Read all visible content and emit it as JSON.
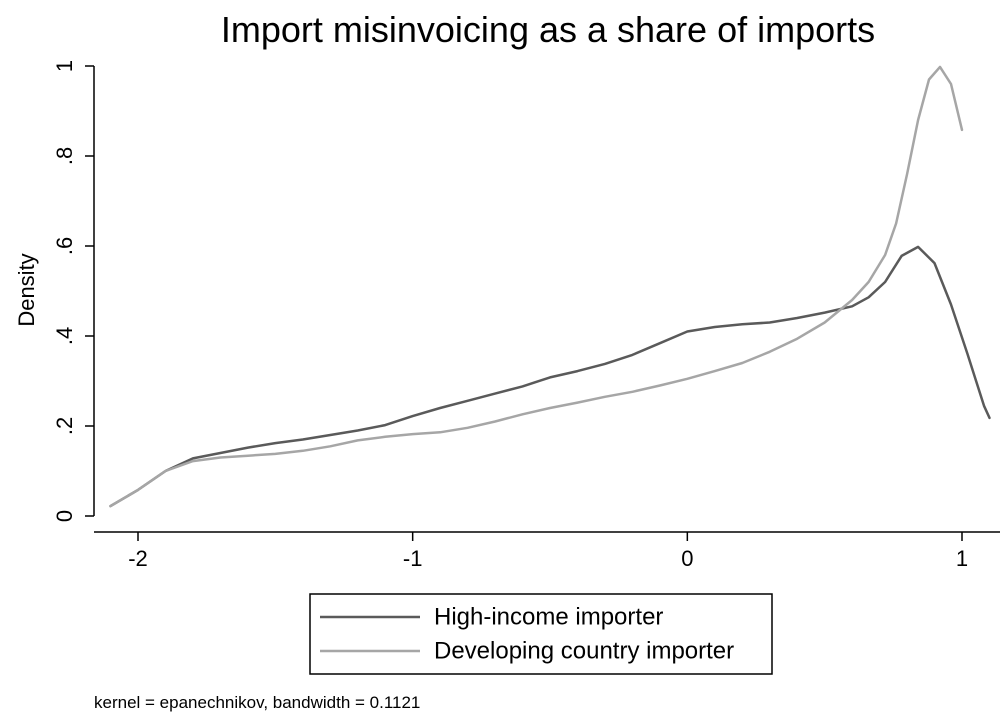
{
  "chart_data": {
    "type": "line",
    "title": "Import misinvoicing as a share of imports",
    "xlabel": "",
    "ylabel": "Density",
    "xlim": [
      -2.12,
      1.12
    ],
    "ylim": [
      0,
      1.0
    ],
    "x_ticks": [
      -2,
      -1,
      0,
      1
    ],
    "x_tick_labels": [
      "-2",
      "-1",
      "0",
      "1"
    ],
    "y_ticks": [
      0,
      0.2,
      0.4,
      0.6,
      0.8,
      1
    ],
    "y_tick_labels": [
      "0",
      ".2",
      ".4",
      ".6",
      ".8",
      "1"
    ],
    "grid": false,
    "legend_position": "bottom",
    "note": "kernel = epanechnikov, bandwidth = 0.1121",
    "series": [
      {
        "name": "High-income importer",
        "color": "#5a5a5a",
        "points": [
          [
            -2.1,
            0.022
          ],
          [
            -2.0,
            0.058
          ],
          [
            -1.9,
            0.1
          ],
          [
            -1.8,
            0.128
          ],
          [
            -1.7,
            0.14
          ],
          [
            -1.6,
            0.152
          ],
          [
            -1.5,
            0.162
          ],
          [
            -1.4,
            0.17
          ],
          [
            -1.3,
            0.18
          ],
          [
            -1.2,
            0.19
          ],
          [
            -1.1,
            0.202
          ],
          [
            -1.0,
            0.222
          ],
          [
            -0.9,
            0.24
          ],
          [
            -0.8,
            0.256
          ],
          [
            -0.7,
            0.272
          ],
          [
            -0.6,
            0.288
          ],
          [
            -0.5,
            0.308
          ],
          [
            -0.4,
            0.322
          ],
          [
            -0.3,
            0.338
          ],
          [
            -0.2,
            0.358
          ],
          [
            -0.1,
            0.384
          ],
          [
            0.0,
            0.41
          ],
          [
            0.1,
            0.42
          ],
          [
            0.2,
            0.426
          ],
          [
            0.3,
            0.43
          ],
          [
            0.4,
            0.44
          ],
          [
            0.5,
            0.452
          ],
          [
            0.6,
            0.466
          ],
          [
            0.66,
            0.486
          ],
          [
            0.72,
            0.52
          ],
          [
            0.78,
            0.578
          ],
          [
            0.84,
            0.598
          ],
          [
            0.9,
            0.562
          ],
          [
            0.96,
            0.47
          ],
          [
            1.02,
            0.36
          ],
          [
            1.08,
            0.245
          ],
          [
            1.1,
            0.218
          ]
        ]
      },
      {
        "name": "Developing country importer",
        "color": "#a6a6a6",
        "points": [
          [
            -2.1,
            0.022
          ],
          [
            -2.0,
            0.058
          ],
          [
            -1.9,
            0.1
          ],
          [
            -1.8,
            0.122
          ],
          [
            -1.7,
            0.13
          ],
          [
            -1.6,
            0.134
          ],
          [
            -1.5,
            0.138
          ],
          [
            -1.4,
            0.145
          ],
          [
            -1.3,
            0.155
          ],
          [
            -1.2,
            0.168
          ],
          [
            -1.1,
            0.176
          ],
          [
            -1.0,
            0.182
          ],
          [
            -0.9,
            0.186
          ],
          [
            -0.8,
            0.196
          ],
          [
            -0.7,
            0.21
          ],
          [
            -0.6,
            0.226
          ],
          [
            -0.5,
            0.24
          ],
          [
            -0.4,
            0.252
          ],
          [
            -0.3,
            0.265
          ],
          [
            -0.2,
            0.276
          ],
          [
            -0.1,
            0.29
          ],
          [
            0.0,
            0.305
          ],
          [
            0.1,
            0.322
          ],
          [
            0.2,
            0.34
          ],
          [
            0.3,
            0.365
          ],
          [
            0.4,
            0.394
          ],
          [
            0.5,
            0.43
          ],
          [
            0.6,
            0.48
          ],
          [
            0.66,
            0.52
          ],
          [
            0.72,
            0.58
          ],
          [
            0.76,
            0.65
          ],
          [
            0.8,
            0.76
          ],
          [
            0.84,
            0.88
          ],
          [
            0.88,
            0.97
          ],
          [
            0.92,
            0.998
          ],
          [
            0.96,
            0.96
          ],
          [
            1.0,
            0.858
          ]
        ]
      }
    ]
  }
}
